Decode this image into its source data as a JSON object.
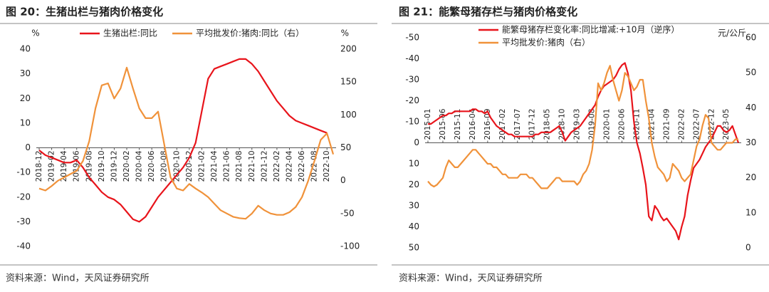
{
  "chart_data": [
    {
      "type": "line",
      "title": "图 20：生猪出栏与猪肉价格变化",
      "source": "资料来源：Wind，天风证券研究所",
      "y_label": "%",
      "y2_label": "%",
      "categories": [
        "2018-12",
        null,
        "2019-02",
        null,
        "2019-04",
        null,
        "2019-06",
        null,
        "2019-08",
        null,
        "2019-10",
        null,
        "2019-12",
        null,
        "2020-02",
        null,
        "2020-04",
        null,
        "2020-06",
        null,
        "2020-08",
        null,
        "2020-10",
        null,
        "2020-12",
        null,
        "2021-02",
        null,
        "2021-04",
        null,
        "2021-06",
        null,
        "2021-08",
        null,
        "2021-10",
        null,
        "2021-12",
        null,
        "2022-02",
        null,
        "2022-04",
        null,
        "2022-06",
        null,
        "2022-08",
        null,
        "2022-10",
        null
      ],
      "series": [
        {
          "name": "生猪出栏:同比",
          "color": "#e8141b",
          "values": [
            -1,
            -3,
            -4,
            -5,
            -6,
            -6,
            -5,
            -8,
            -12,
            -15,
            -18,
            -20,
            -21,
            -23,
            -26,
            -29,
            -30,
            -28,
            -24,
            -20,
            -17,
            -14,
            -11,
            -8,
            -4,
            2,
            15,
            28,
            32,
            33,
            34,
            35,
            36,
            36,
            34,
            31,
            27,
            23,
            19,
            16,
            13,
            11,
            10,
            9,
            8,
            7,
            6,
            null
          ]
        },
        {
          "name": "平均批发价:猪肉:同比（右）",
          "color": "#f0923a",
          "axis": "y2",
          "values": [
            -12,
            -15,
            -8,
            0,
            5,
            10,
            15,
            30,
            60,
            110,
            145,
            148,
            125,
            140,
            172,
            140,
            110,
            95,
            95,
            105,
            55,
            5,
            -12,
            -15,
            -5,
            -12,
            -18,
            -25,
            -35,
            -45,
            -50,
            -55,
            -57,
            -58,
            -50,
            -38,
            -45,
            -50,
            -52,
            -52,
            -48,
            -40,
            -25,
            0,
            30,
            62,
            72,
            40
          ]
        }
      ],
      "ylim": [
        -40,
        40
      ],
      "yticks": [
        -40,
        -30,
        -20,
        -10,
        0,
        10,
        20,
        30,
        40
      ],
      "y2lim": [
        -100,
        200
      ],
      "y2ticks": [
        -100,
        -50,
        0,
        50,
        100,
        150,
        200
      ]
    },
    {
      "type": "line",
      "title": "图 21：能繁母猪存栏与猪肉价格变化",
      "source": "资料来源：Wind，天风证券研究所",
      "y2_label": "元/公斤",
      "categories": [
        "2015-01",
        null,
        null,
        null,
        null,
        "2015-06",
        null,
        null,
        null,
        null,
        "2015-11",
        null,
        null,
        null,
        null,
        "2016-04",
        null,
        null,
        null,
        null,
        "2016-09",
        null,
        null,
        null,
        null,
        "2017-02",
        null,
        null,
        null,
        null,
        "2017-07",
        null,
        null,
        null,
        null,
        "2017-12",
        null,
        null,
        null,
        null,
        "2018-05",
        null,
        null,
        null,
        null,
        "2018-10",
        null,
        null,
        null,
        null,
        "2019-03",
        null,
        null,
        null,
        null,
        "2019-08",
        null,
        null,
        null,
        null,
        "2020-01",
        null,
        null,
        null,
        null,
        "2020-06",
        null,
        null,
        null,
        null,
        "2020-11",
        null,
        null,
        null,
        null,
        "2021-04",
        null,
        null,
        null,
        null,
        "2021-09",
        null,
        null,
        null,
        null,
        "2022-02",
        null,
        null,
        null,
        null,
        "2022-07",
        null,
        null,
        null,
        null,
        "2022-12",
        null,
        null,
        null,
        null,
        "2023-05",
        null,
        null,
        null,
        null
      ],
      "series": [
        {
          "name": "能繁母猪存栏变化率:同比增减:+10月（逆序）",
          "color": "#e8141b",
          "values": [
            -9,
            -9,
            -10,
            -11,
            -12,
            -13,
            -13,
            -14,
            -14,
            -15,
            -15,
            -15,
            -15,
            -15,
            -15,
            -16,
            -16,
            -15,
            -15,
            -14,
            -15,
            -12,
            -10,
            -8,
            -7,
            -6,
            -5,
            -4,
            -4,
            -3,
            -3,
            -3,
            -3,
            -3,
            -3,
            -3,
            -4,
            -4,
            -5,
            -5,
            -5,
            -5,
            -6,
            -7,
            -8,
            -5,
            -1,
            -3,
            -5,
            -6,
            -7,
            -8,
            -10,
            -12,
            -14,
            -16,
            -18,
            -22,
            -25,
            -27,
            -28,
            -29,
            -30,
            -32,
            -35,
            -37,
            -38,
            -33,
            -25,
            -10,
            0,
            5,
            12,
            20,
            35,
            37,
            30,
            32,
            35,
            37,
            36,
            38,
            40,
            42,
            46,
            40,
            35,
            25,
            18,
            12,
            10,
            8,
            5,
            2,
            0,
            -2,
            -5,
            -8,
            -8,
            -6,
            -5,
            -6,
            -8,
            -4,
            0
          ]
        },
        {
          "name": "平均批发价:猪肉（右）",
          "color": "#f0923a",
          "axis": "y2",
          "values": [
            19,
            18,
            17.5,
            18,
            19,
            20,
            23,
            25,
            24,
            23,
            23,
            24,
            25,
            26,
            27,
            28,
            28,
            27,
            26,
            25,
            24,
            24,
            23,
            23,
            22,
            21,
            21,
            20,
            20,
            20,
            20,
            21,
            21,
            21,
            20,
            20,
            19,
            18,
            17,
            17,
            17,
            18,
            19,
            20,
            20,
            19,
            19,
            19,
            19,
            19,
            18,
            19,
            21,
            22,
            24,
            28,
            35,
            47,
            45,
            47,
            50,
            52,
            48,
            45,
            42,
            45,
            50,
            49,
            47,
            45,
            46,
            48,
            48,
            42,
            37,
            30,
            26,
            23,
            22,
            21,
            19,
            20,
            24,
            23,
            22,
            20,
            19,
            20,
            21,
            25,
            29,
            31,
            35,
            38,
            37,
            30,
            29,
            28,
            28,
            29,
            30,
            30,
            30,
            31,
            31
          ]
        }
      ],
      "ylim": [
        50,
        -50
      ],
      "yticks": [
        -50,
        -40,
        -30,
        -20,
        -10,
        0,
        10,
        20,
        30,
        40,
        50
      ],
      "y2lim": [
        0,
        60
      ],
      "y2ticks": [
        0,
        10,
        20,
        30,
        40,
        50,
        60
      ]
    }
  ]
}
